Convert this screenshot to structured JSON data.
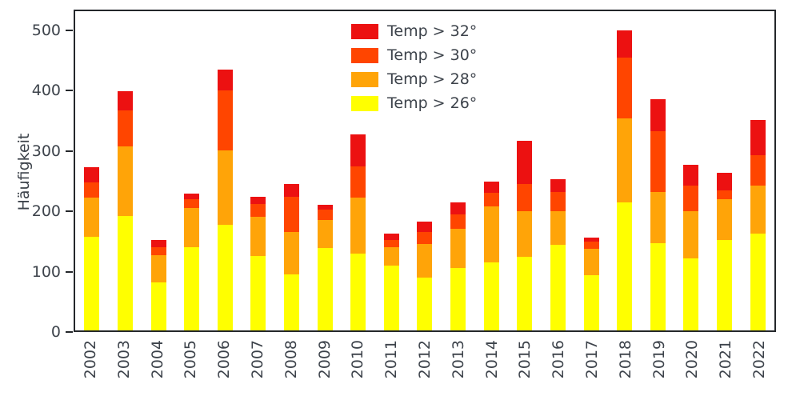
{
  "chart_data": {
    "type": "bar",
    "stacked": true,
    "title": "",
    "xlabel": "",
    "ylabel": "Häufigkeit",
    "ylim": [
      0,
      534
    ],
    "yticks": [
      0,
      100,
      200,
      300,
      400,
      500
    ],
    "grid": false,
    "legend_position": "upper center, inside plot, no frame",
    "legend_order": [
      "Temp > 32°",
      "Temp > 30°",
      "Temp > 28°",
      "Temp > 26°"
    ],
    "categories": [
      "2002",
      "2003",
      "2004",
      "2005",
      "2006",
      "2007",
      "2008",
      "2009",
      "2010",
      "2011",
      "2012",
      "2013",
      "2014",
      "2015",
      "2016",
      "2017",
      "2018",
      "2019",
      "2020",
      "2021",
      "2022"
    ],
    "series": [
      {
        "name": "Temp > 26°",
        "color": "#ffff00",
        "values": [
          155,
          190,
          80,
          138,
          175,
          123,
          93,
          137,
          128,
          107,
          87,
          103,
          113,
          122,
          142,
          92,
          212,
          145,
          120,
          150,
          160
        ]
      },
      {
        "name": "Temp > 28°",
        "color": "#ffa408",
        "values": [
          65,
          115,
          45,
          65,
          123,
          65,
          70,
          46,
          92,
          31,
          56,
          65,
          92,
          76,
          55,
          43,
          140,
          85,
          78,
          68,
          80
        ]
      },
      {
        "name": "Temp > 30°",
        "color": "#ff4500",
        "values": [
          25,
          60,
          13,
          15,
          100,
          22,
          59,
          17,
          52,
          12,
          20,
          24,
          23,
          45,
          33,
          12,
          100,
          100,
          42,
          14,
          50
        ]
      },
      {
        "name": "Temp > 32°",
        "color": "#ec1111",
        "values": [
          25,
          32,
          12,
          9,
          34,
          12,
          21,
          8,
          53,
          10,
          17,
          20,
          19,
          71,
          21,
          7,
          45,
          53,
          35,
          29,
          59
        ]
      }
    ],
    "colors": {
      "spine": "#24272b",
      "tick_text": "#3d434b",
      "background": "#ffffff"
    }
  }
}
